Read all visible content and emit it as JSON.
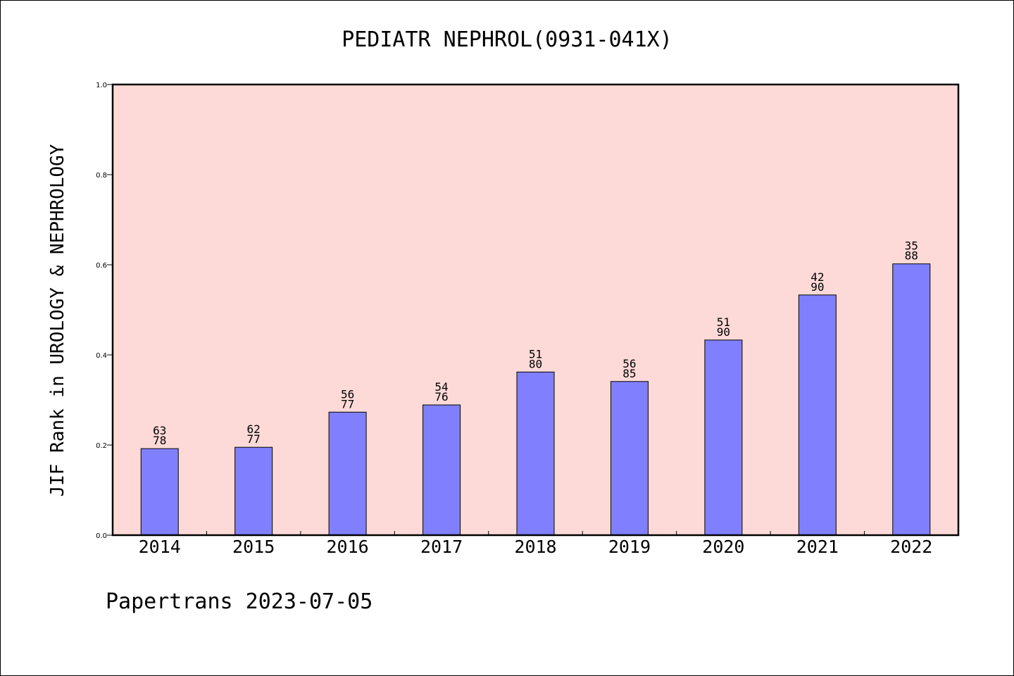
{
  "chart_data": {
    "type": "bar",
    "title": "PEDIATR NEPHROL(0931-041X)",
    "ylabel": "JIF Rank in UROLOGY & NEPHROLOGY",
    "xlabel": "",
    "categories": [
      "2014",
      "2015",
      "2016",
      "2017",
      "2018",
      "2019",
      "2020",
      "2021",
      "2022"
    ],
    "values": [
      0.192,
      0.195,
      0.273,
      0.289,
      0.362,
      0.341,
      0.433,
      0.533,
      0.602
    ],
    "bar_labels": [
      [
        "63",
        "78"
      ],
      [
        "62",
        "77"
      ],
      [
        "56",
        "77"
      ],
      [
        "54",
        "76"
      ],
      [
        "51",
        "80"
      ],
      [
        "56",
        "85"
      ],
      [
        "51",
        "90"
      ],
      [
        "42",
        "90"
      ],
      [
        "35",
        "88"
      ]
    ],
    "ylim": [
      0.0,
      1.0
    ],
    "yticks": [
      "0.0",
      "0.2",
      "0.4",
      "0.6",
      "0.8",
      "1.0"
    ],
    "grid": false,
    "colors": {
      "plot_background": "#fddad7",
      "bar": "#8080ff",
      "axis": "#000000"
    }
  },
  "footer": "Papertrans 2023-07-05"
}
